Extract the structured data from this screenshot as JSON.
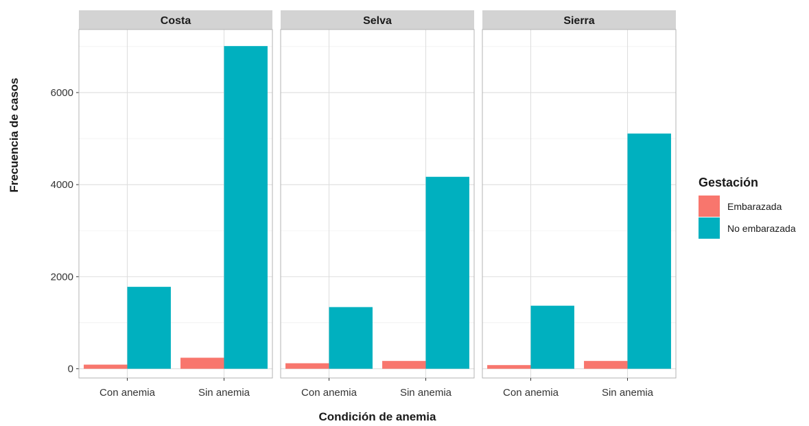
{
  "chart_data": {
    "type": "bar",
    "facets": [
      "Costa",
      "Selva",
      "Sierra"
    ],
    "categories": [
      "Con anemia",
      "Sin anemia"
    ],
    "series": [
      {
        "name": "Embarazada",
        "color": "#F8766D",
        "values": {
          "Costa": [
            90,
            240
          ],
          "Selva": [
            120,
            170
          ],
          "Sierra": [
            80,
            170
          ]
        }
      },
      {
        "name": "No embarazada",
        "color": "#00B0BF",
        "values": {
          "Costa": [
            1780,
            7010
          ],
          "Selva": [
            1340,
            4170
          ],
          "Sierra": [
            1370,
            5110
          ]
        }
      }
    ],
    "xlabel": "Condición de anemia",
    "ylabel": "Frecuencia de casos",
    "legend_title": "Gestación",
    "legend_position": "right",
    "ylim": [
      -200,
      7370
    ],
    "yticks": [
      0,
      2000,
      4000,
      6000
    ],
    "grid": true
  }
}
